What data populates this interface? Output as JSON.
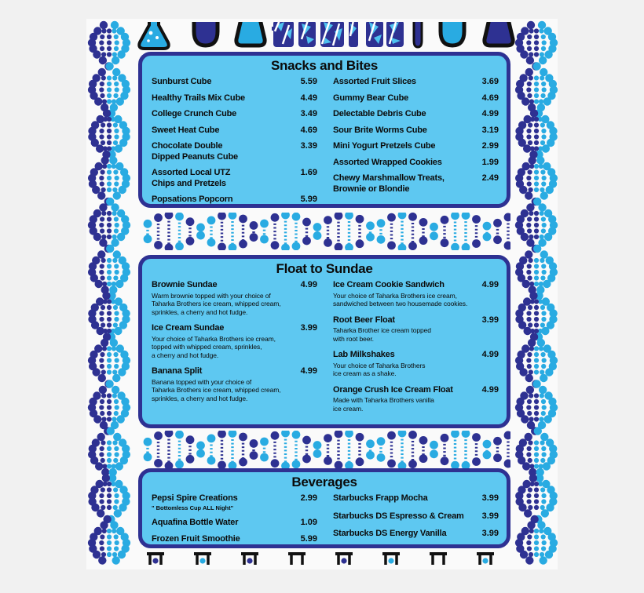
{
  "colors": {
    "navy": "#2e3192",
    "light_blue": "#29abe2",
    "panel_fill": "#5ec8f1",
    "outline": "#111111"
  },
  "decor": {
    "top_icons": [
      "dna-segment",
      "erlenmeyer-flask",
      "beaker-cup",
      "beaker-trapezoid",
      "cropped-logo-art",
      "test-tube",
      "beaker-cup",
      "beaker-trapezoid",
      "dna-segment"
    ],
    "bottom_icons": [
      "beaker-top",
      "beaker-top",
      "beaker-top",
      "beaker-top",
      "beaker-top",
      "beaker-top",
      "beaker-top",
      "beaker-top"
    ],
    "borders": [
      "dna-helix-left",
      "dna-helix-right",
      "dna-divider-top",
      "dna-divider-bottom"
    ]
  },
  "menu": {
    "sections": [
      {
        "title": "Snacks and Bites",
        "columns": [
          [
            {
              "name": "Sunburst Cube",
              "price": "5.59"
            },
            {
              "name": "Healthy Trails Mix Cube",
              "price": "4.49"
            },
            {
              "name": "College Crunch Cube",
              "price": "3.49"
            },
            {
              "name": "Sweet Heat Cube",
              "price": "4.69"
            },
            {
              "name": "Chocolate Double\nDipped Peanuts Cube",
              "price": "3.39"
            },
            {
              "name": "Assorted Local UTZ\nChips and Pretzels",
              "price": "1.69"
            },
            {
              "name": "Popsations Popcorn",
              "price": "5.99"
            }
          ],
          [
            {
              "name": "Assorted Fruit Slices",
              "price": "3.69"
            },
            {
              "name": "Gummy Bear Cube",
              "price": "4.69"
            },
            {
              "name": "Delectable Debris Cube",
              "price": "4.99"
            },
            {
              "name": "Sour Brite Worms Cube",
              "price": "3.19"
            },
            {
              "name": "Mini Yogurt Pretzels Cube",
              "price": "2.99"
            },
            {
              "name": "Assorted Wrapped Cookies",
              "price": "1.99"
            },
            {
              "name": "Chewy Marshmallow Treats,\nBrownie or Blondie",
              "price": "2.49"
            }
          ]
        ]
      },
      {
        "title": "Float to Sundae",
        "columns": [
          [
            {
              "name": "Brownie Sundae",
              "price": "4.99",
              "desc": "Warm brownie topped with your choice of\nTaharka Brothers ice cream, whipped cream,\nsprinkles, a cherry and hot fudge."
            },
            {
              "name": "Ice Cream Sundae",
              "price": "3.99",
              "desc": "Your choice of Taharka Brothers ice cream,\ntopped with whipped cream, sprinkles,\na cherry and hot fudge."
            },
            {
              "name": "Banana Split",
              "price": "4.99",
              "desc": "Banana topped with your choice of\nTaharka Brothers ice cream, whipped cream,\nsprinkles, a cherry and hot fudge."
            }
          ],
          [
            {
              "name": "Ice Cream Cookie Sandwich",
              "price": "4.99",
              "desc": "Your choice of Taharka Brothers ice cream,\nsandwiched between two housemade cookies."
            },
            {
              "name": "Root Beer Float",
              "price": "3.99",
              "desc": "Taharka Brother ice cream topped\nwith root beer."
            },
            {
              "name": "Lab Milkshakes",
              "price": "4.99",
              "desc": "Your choice of Taharka Brothers\nice cream as a shake."
            },
            {
              "name": "Orange Crush Ice Cream Float",
              "price": "4.99",
              "desc": "Made with Taharka Brothers vanilla\nice cream."
            }
          ]
        ]
      },
      {
        "title": "Beverages",
        "columns": [
          [
            {
              "name": "Pepsi Spire Creations",
              "price": "2.99",
              "note": "\" Bottomless Cup ALL Night\""
            },
            {
              "name": "Aquafina Bottle Water",
              "price": "1.09"
            },
            {
              "name": "Frozen Fruit Smoothie",
              "price": "5.99"
            }
          ],
          [
            {
              "name": "Starbucks Frapp Mocha",
              "price": "3.99"
            },
            {
              "name": "Starbucks DS Espresso & Cream",
              "price": "3.99"
            },
            {
              "name": "Starbucks DS Energy Vanilla",
              "price": "3.99"
            }
          ]
        ]
      }
    ]
  }
}
